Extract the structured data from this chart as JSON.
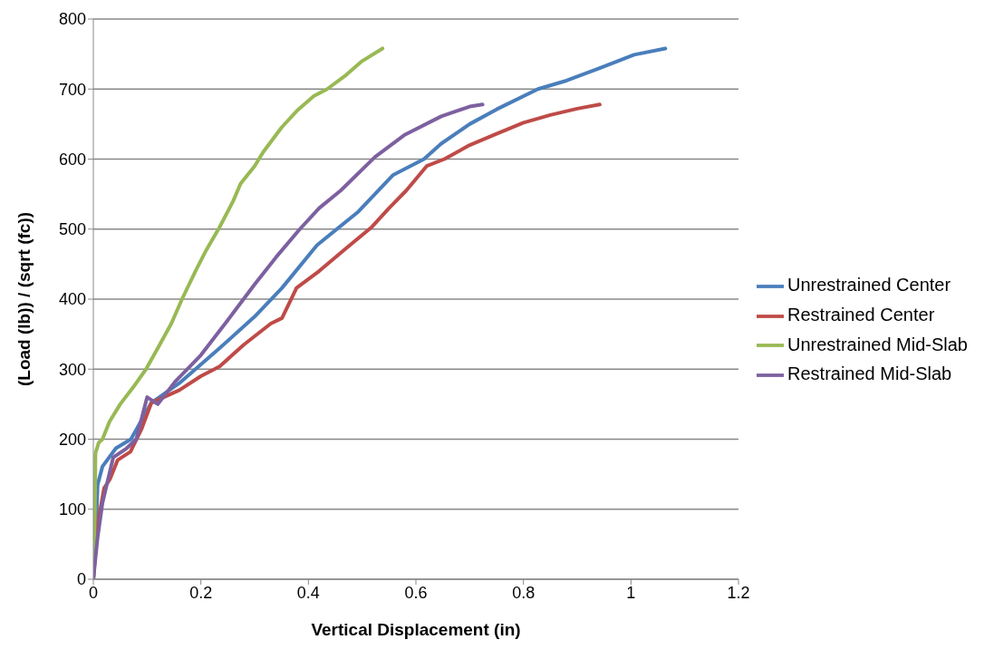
{
  "chart_data": {
    "type": "line",
    "xlabel": "Vertical Displacement (in)",
    "ylabel": "(Load (lb)) / (sqrt (fc))",
    "xlim": [
      0,
      1.2
    ],
    "xticks": [
      0,
      0.2,
      0.4,
      0.6,
      0.8,
      1,
      1.2
    ],
    "ylim": [
      0,
      800
    ],
    "yticks": [
      0,
      100,
      200,
      300,
      400,
      500,
      600,
      700,
      800
    ],
    "grid": "y",
    "legend": "right",
    "line_style": "solid",
    "series": [
      {
        "name": "Unrestrained Center",
        "color": "#4a7ebb",
        "x": [
          0,
          0.004,
          0.008,
          0.017,
          0.042,
          0.07,
          0.108,
          0.16,
          0.235,
          0.3,
          0.351,
          0.416,
          0.493,
          0.557,
          0.615,
          0.647,
          0.7,
          0.75,
          0.827,
          0.88,
          0.942,
          1.006,
          1.064
        ],
        "values": [
          0,
          50,
          135,
          161,
          187,
          200,
          252,
          280,
          330,
          375,
          416,
          477,
          525,
          577,
          600,
          622,
          650,
          671,
          700,
          712,
          730,
          749,
          758
        ]
      },
      {
        "name": "Restrained Center",
        "color": "#be4b48",
        "x": [
          0,
          0.005,
          0.011,
          0.02,
          0.031,
          0.045,
          0.069,
          0.09,
          0.108,
          0.16,
          0.2,
          0.235,
          0.28,
          0.33,
          0.351,
          0.378,
          0.42,
          0.466,
          0.518,
          0.55,
          0.582,
          0.62,
          0.653,
          0.7,
          0.75,
          0.8,
          0.85,
          0.9,
          0.942
        ],
        "values": [
          0,
          50,
          91,
          130,
          143,
          170,
          182,
          215,
          252,
          270,
          290,
          304,
          335,
          365,
          373,
          416,
          440,
          470,
          503,
          530,
          555,
          590,
          600,
          620,
          636,
          652,
          663,
          672,
          678
        ]
      },
      {
        "name": "Unrestrained Mid-Slab",
        "color": "#98b954",
        "x": [
          0,
          0.003,
          0.004,
          0.01,
          0.017,
          0.03,
          0.05,
          0.075,
          0.098,
          0.12,
          0.145,
          0.165,
          0.19,
          0.21,
          0.235,
          0.26,
          0.274,
          0.3,
          0.316,
          0.35,
          0.38,
          0.41,
          0.435,
          0.47,
          0.5,
          0.538
        ],
        "values": [
          0,
          100,
          180,
          195,
          200,
          225,
          250,
          275,
          300,
          330,
          365,
          400,
          440,
          470,
          503,
          540,
          565,
          590,
          610,
          645,
          670,
          690,
          700,
          720,
          740,
          758
        ]
      },
      {
        "name": "Restrained Mid-Slab",
        "color": "#7d60a0",
        "x": [
          0,
          0.008,
          0.017,
          0.037,
          0.062,
          0.08,
          0.1,
          0.12,
          0.152,
          0.2,
          0.249,
          0.3,
          0.34,
          0.383,
          0.42,
          0.46,
          0.524,
          0.58,
          0.647,
          0.7,
          0.724
        ],
        "values": [
          0,
          60,
          109,
          174,
          187,
          200,
          260,
          250,
          282,
          320,
          369,
          421,
          460,
          499,
          530,
          555,
          603,
          635,
          661,
          675,
          678
        ]
      }
    ]
  }
}
